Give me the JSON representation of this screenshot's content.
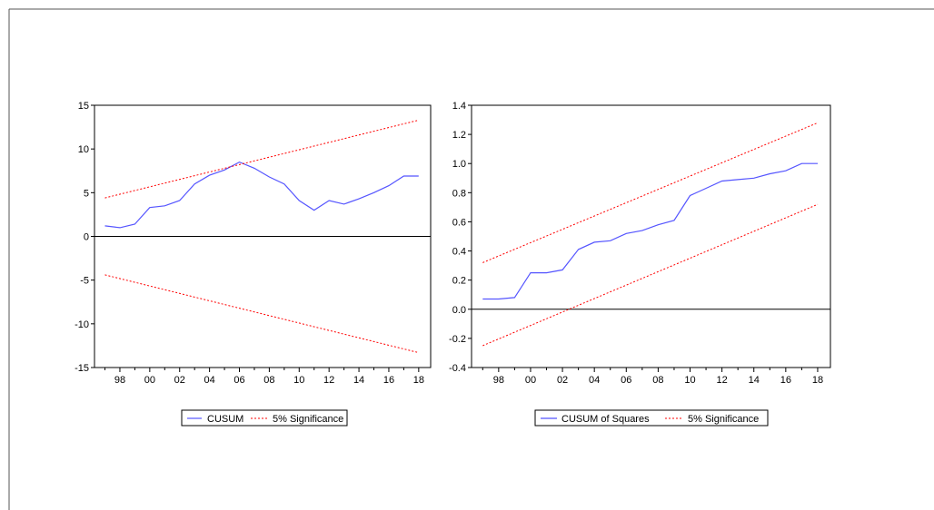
{
  "colors": {
    "series": "#5555ff",
    "bands": "#ff0000",
    "axis": "#000000",
    "frame": "#555555"
  },
  "chart_data": [
    {
      "type": "line",
      "ylim": [
        -15,
        15
      ],
      "yticks": [
        -15,
        -10,
        -5,
        0,
        5,
        10,
        15
      ],
      "ytick_labels": [
        "-15",
        "-10",
        "-5",
        "0",
        "5",
        "10",
        "15"
      ],
      "xlim": [
        1996.3,
        2018.8
      ],
      "xtick_labels": [
        "98",
        "00",
        "02",
        "04",
        "06",
        "08",
        "10",
        "12",
        "14",
        "16",
        "18"
      ],
      "xtick_years": [
        1998,
        2000,
        2002,
        2004,
        2006,
        2008,
        2010,
        2012,
        2014,
        2016,
        2018
      ],
      "zero_line": true,
      "series": [
        {
          "name": "CUSUM",
          "x": [
            1997,
            1998,
            1999,
            2000,
            2001,
            2002,
            2003,
            2004,
            2005,
            2006,
            2007,
            2008,
            2009,
            2010,
            2011,
            2012,
            2013,
            2014,
            2015,
            2016,
            2017,
            2018
          ],
          "values": [
            1.2,
            1.0,
            1.4,
            3.3,
            3.5,
            4.1,
            6.0,
            7.0,
            7.6,
            8.5,
            7.8,
            6.8,
            6.0,
            4.1,
            3.0,
            4.1,
            3.7,
            4.3,
            5.0,
            5.8,
            6.9,
            6.9
          ]
        },
        {
          "name": "5% Significance",
          "x": [
            1997,
            2018
          ],
          "values": [
            4.4,
            13.3
          ]
        },
        {
          "name": "5% Significance",
          "x": [
            1997,
            2018
          ],
          "values": [
            -4.4,
            -13.3
          ]
        }
      ],
      "legend": [
        "CUSUM",
        "5% Significance"
      ]
    },
    {
      "type": "line",
      "ylim": [
        -0.4,
        1.4
      ],
      "yticks": [
        -0.4,
        -0.2,
        0.0,
        0.2,
        0.4,
        0.6,
        0.8,
        1.0,
        1.2,
        1.4
      ],
      "ytick_labels": [
        "-0.4",
        "-0.2",
        "0.0",
        "0.2",
        "0.4",
        "0.6",
        "0.8",
        "1.0",
        "1.2",
        "1.4"
      ],
      "xlim": [
        1996.3,
        2018.8
      ],
      "xtick_labels": [
        "98",
        "00",
        "02",
        "04",
        "06",
        "08",
        "10",
        "12",
        "14",
        "16",
        "18"
      ],
      "xtick_years": [
        1998,
        2000,
        2002,
        2004,
        2006,
        2008,
        2010,
        2012,
        2014,
        2016,
        2018
      ],
      "zero_line": true,
      "series": [
        {
          "name": "CUSUM of Squares",
          "x": [
            1997,
            1998,
            1999,
            2000,
            2001,
            2002,
            2003,
            2004,
            2005,
            2006,
            2007,
            2008,
            2009,
            2010,
            2011,
            2012,
            2013,
            2014,
            2015,
            2016,
            2017,
            2018
          ],
          "values": [
            0.07,
            0.07,
            0.08,
            0.25,
            0.25,
            0.27,
            0.41,
            0.46,
            0.47,
            0.52,
            0.54,
            0.58,
            0.61,
            0.78,
            0.83,
            0.88,
            0.89,
            0.9,
            0.93,
            0.95,
            1.0,
            1.0
          ]
        },
        {
          "name": "5% Significance",
          "x": [
            1997,
            2018
          ],
          "values": [
            0.32,
            1.28
          ]
        },
        {
          "name": "5% Significance",
          "x": [
            1997,
            2018
          ],
          "values": [
            -0.25,
            0.72
          ]
        }
      ],
      "legend": [
        "CUSUM of Squares",
        "5% Significance"
      ]
    }
  ]
}
